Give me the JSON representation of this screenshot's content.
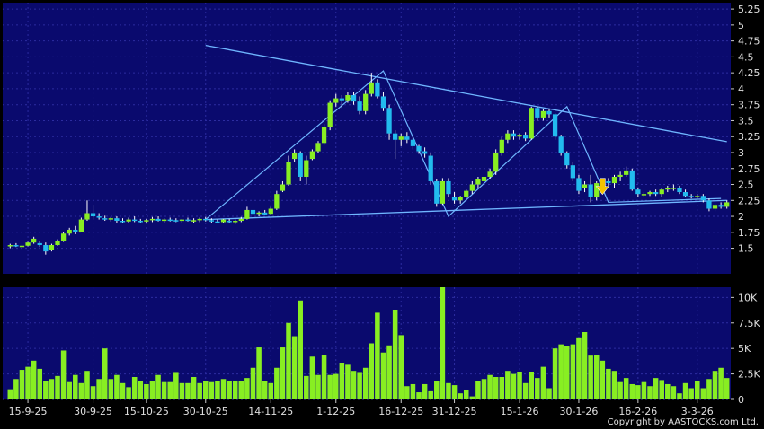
{
  "chart_data": [
    {
      "type": "candlestick",
      "panel": "price",
      "ylim": [
        1.1,
        5.35
      ],
      "y_ticks": [
        "5.25",
        "5",
        "4.75",
        "4.5",
        "4.25",
        "4",
        "3.75",
        "3.5",
        "3.25",
        "3",
        "2.75",
        "2.5",
        "2.25",
        "2",
        "1.75",
        "1.5"
      ],
      "grid": true,
      "colors": {
        "background": "#0a0a6e",
        "grid": "#2c2ca0",
        "up": "#88ee22",
        "down": "#22bbee",
        "trendline": "#6fb6ff",
        "marker": "#f5c400"
      },
      "candles": [
        [
          1.53,
          1.57,
          1.5,
          1.55
        ],
        [
          1.55,
          1.58,
          1.52,
          1.53
        ],
        [
          1.53,
          1.56,
          1.5,
          1.54
        ],
        [
          1.54,
          1.6,
          1.53,
          1.59
        ],
        [
          1.59,
          1.68,
          1.57,
          1.65
        ],
        [
          1.58,
          1.62,
          1.52,
          1.55
        ],
        [
          1.55,
          1.59,
          1.4,
          1.45
        ],
        [
          1.47,
          1.57,
          1.45,
          1.55
        ],
        [
          1.55,
          1.64,
          1.54,
          1.62
        ],
        [
          1.62,
          1.75,
          1.6,
          1.73
        ],
        [
          1.73,
          1.82,
          1.7,
          1.79
        ],
        [
          1.79,
          1.85,
          1.72,
          1.76
        ],
        [
          1.76,
          1.98,
          1.75,
          1.95
        ],
        [
          1.95,
          2.25,
          1.93,
          2.05
        ],
        [
          2.05,
          2.18,
          1.95,
          2.0
        ],
        [
          2.0,
          2.05,
          1.95,
          1.98
        ],
        [
          1.97,
          2.01,
          1.93,
          1.95
        ],
        [
          1.95,
          1.99,
          1.92,
          1.97
        ],
        [
          1.97,
          2.0,
          1.9,
          1.93
        ],
        [
          1.93,
          1.97,
          1.89,
          1.92
        ],
        [
          1.92,
          1.98,
          1.9,
          1.95
        ],
        [
          1.95,
          2.0,
          1.91,
          1.93
        ],
        [
          1.93,
          1.96,
          1.89,
          1.92
        ],
        [
          1.92,
          1.96,
          1.9,
          1.94
        ],
        [
          1.94,
          1.99,
          1.91,
          1.96
        ],
        [
          1.96,
          2.0,
          1.92,
          1.93
        ],
        [
          1.93,
          1.97,
          1.9,
          1.95
        ],
        [
          1.95,
          1.98,
          1.92,
          1.94
        ],
        [
          1.94,
          1.97,
          1.91,
          1.93
        ],
        [
          1.93,
          1.96,
          1.9,
          1.95
        ],
        [
          1.95,
          1.98,
          1.92,
          1.93
        ],
        [
          1.93,
          1.97,
          1.9,
          1.94
        ],
        [
          1.94,
          1.98,
          1.91,
          1.96
        ],
        [
          1.96,
          1.99,
          1.92,
          1.94
        ],
        [
          1.94,
          1.97,
          1.9,
          1.92
        ],
        [
          1.92,
          1.95,
          1.89,
          1.91
        ],
        [
          1.91,
          1.96,
          1.9,
          1.95
        ],
        [
          1.93,
          1.96,
          1.9,
          1.92
        ],
        [
          1.92,
          1.95,
          1.88,
          1.93
        ],
        [
          1.93,
          1.99,
          1.91,
          1.96
        ],
        [
          1.96,
          2.15,
          1.95,
          2.1
        ],
        [
          2.1,
          2.12,
          2.02,
          2.04
        ],
        [
          2.04,
          2.08,
          2.0,
          2.06
        ],
        [
          2.06,
          2.1,
          2.02,
          2.03
        ],
        [
          2.04,
          2.15,
          2.03,
          2.12
        ],
        [
          2.12,
          2.4,
          2.1,
          2.35
        ],
        [
          2.4,
          2.55,
          2.38,
          2.5
        ],
        [
          2.5,
          2.95,
          2.48,
          2.85
        ],
        [
          2.9,
          3.05,
          2.85,
          3.0
        ],
        [
          3.0,
          3.02,
          2.55,
          2.62
        ],
        [
          2.62,
          2.95,
          2.5,
          2.88
        ],
        [
          2.9,
          3.05,
          2.88,
          3.02
        ],
        [
          3.02,
          3.18,
          3.0,
          3.15
        ],
        [
          3.15,
          3.45,
          3.12,
          3.4
        ],
        [
          3.4,
          3.82,
          3.35,
          3.78
        ],
        [
          3.78,
          3.92,
          3.72,
          3.85
        ],
        [
          3.85,
          3.9,
          3.7,
          3.82
        ],
        [
          3.82,
          3.95,
          3.78,
          3.9
        ],
        [
          3.9,
          3.95,
          3.75,
          3.8
        ],
        [
          3.8,
          3.88,
          3.6,
          3.65
        ],
        [
          3.65,
          3.98,
          3.6,
          3.92
        ],
        [
          3.92,
          4.25,
          3.88,
          4.1
        ],
        [
          4.1,
          4.15,
          3.85,
          3.88
        ],
        [
          3.88,
          3.95,
          3.65,
          3.7
        ],
        [
          3.7,
          3.75,
          3.2,
          3.3
        ],
        [
          3.3,
          3.35,
          2.9,
          3.2
        ],
        [
          3.2,
          3.3,
          3.1,
          3.25
        ],
        [
          3.25,
          3.32,
          3.15,
          3.2
        ],
        [
          3.2,
          3.25,
          3.05,
          3.1
        ],
        [
          3.1,
          3.12,
          2.98,
          3.02
        ],
        [
          3.02,
          3.08,
          2.92,
          2.98
        ],
        [
          2.95,
          3.0,
          2.5,
          2.55
        ],
        [
          2.55,
          2.58,
          2.15,
          2.2
        ],
        [
          2.2,
          2.6,
          2.18,
          2.55
        ],
        [
          2.55,
          2.6,
          2.3,
          2.35
        ],
        [
          2.3,
          2.38,
          2.2,
          2.25
        ],
        [
          2.25,
          2.32,
          2.2,
          2.3
        ],
        [
          2.3,
          2.42,
          2.28,
          2.4
        ],
        [
          2.4,
          2.55,
          2.35,
          2.5
        ],
        [
          2.5,
          2.62,
          2.45,
          2.58
        ],
        [
          2.55,
          2.65,
          2.5,
          2.62
        ],
        [
          2.62,
          2.75,
          2.58,
          2.7
        ],
        [
          2.7,
          3.05,
          2.65,
          3.0
        ],
        [
          3.0,
          3.25,
          2.95,
          3.2
        ],
        [
          3.2,
          3.35,
          3.15,
          3.3
        ],
        [
          3.3,
          3.35,
          3.2,
          3.25
        ],
        [
          3.25,
          3.3,
          3.2,
          3.28
        ],
        [
          3.28,
          3.32,
          3.18,
          3.22
        ],
        [
          3.22,
          3.72,
          3.2,
          3.7
        ],
        [
          3.7,
          3.72,
          3.5,
          3.55
        ],
        [
          3.55,
          3.68,
          3.5,
          3.65
        ],
        [
          3.65,
          3.68,
          3.55,
          3.6
        ],
        [
          3.6,
          3.62,
          3.2,
          3.25
        ],
        [
          3.25,
          3.28,
          2.95,
          3.0
        ],
        [
          3.0,
          3.02,
          2.75,
          2.8
        ],
        [
          2.8,
          2.85,
          2.55,
          2.6
        ],
        [
          2.6,
          2.65,
          2.35,
          2.4
        ],
        [
          2.45,
          2.55,
          2.38,
          2.5
        ],
        [
          2.5,
          2.65,
          2.22,
          2.3
        ],
        [
          2.3,
          2.55,
          2.25,
          2.52
        ],
        [
          2.52,
          2.58,
          2.45,
          2.55
        ],
        [
          2.55,
          2.6,
          2.48,
          2.52
        ],
        [
          2.52,
          2.65,
          2.45,
          2.62
        ],
        [
          2.62,
          2.7,
          2.55,
          2.65
        ],
        [
          2.65,
          2.78,
          2.62,
          2.72
        ],
        [
          2.72,
          2.75,
          2.4,
          2.42
        ],
        [
          2.42,
          2.45,
          2.3,
          2.35
        ],
        [
          2.35,
          2.38,
          2.3,
          2.35
        ],
        [
          2.35,
          2.4,
          2.32,
          2.38
        ],
        [
          2.38,
          2.42,
          2.32,
          2.35
        ],
        [
          2.35,
          2.45,
          2.3,
          2.42
        ],
        [
          2.42,
          2.48,
          2.38,
          2.45
        ],
        [
          2.45,
          2.5,
          2.4,
          2.45
        ],
        [
          2.45,
          2.48,
          2.35,
          2.38
        ],
        [
          2.38,
          2.42,
          2.3,
          2.32
        ],
        [
          2.32,
          2.35,
          2.28,
          2.3
        ],
        [
          2.3,
          2.35,
          2.28,
          2.32
        ],
        [
          2.32,
          2.35,
          2.22,
          2.25
        ],
        [
          2.25,
          2.28,
          2.08,
          2.12
        ],
        [
          2.12,
          2.2,
          2.08,
          2.18
        ],
        [
          2.18,
          2.22,
          2.12,
          2.15
        ],
        [
          2.15,
          2.25,
          2.12,
          2.22
        ]
      ],
      "trendlines": [
        {
          "from": [
            33,
            4.68
          ],
          "to": [
            121,
            3.17
          ]
        },
        {
          "from": [
            33,
            1.95
          ],
          "to": [
            121,
            2.25
          ]
        }
      ],
      "zigzag": [
        [
          33,
          1.95
        ],
        [
          63,
          4.28
        ],
        [
          74,
          2.0
        ],
        [
          94,
          3.72
        ],
        [
          101,
          2.22
        ],
        [
          120,
          2.28
        ]
      ],
      "marker": {
        "index": 100,
        "value": 2.4,
        "shape": "down-arrow"
      }
    },
    {
      "type": "bar",
      "panel": "volume",
      "ylim": [
        0,
        11000
      ],
      "y_ticks": [
        "10K",
        "7.5K",
        "5K",
        "2.5K",
        "0"
      ],
      "grid": true,
      "colors": {
        "bar": "#88ee22"
      },
      "values": [
        1000,
        2000,
        2900,
        3200,
        3800,
        3000,
        1800,
        2000,
        2300,
        4800,
        1700,
        2400,
        1600,
        2800,
        1300,
        2000,
        5000,
        2000,
        2400,
        1600,
        1200,
        2200,
        1800,
        1500,
        1800,
        2400,
        1700,
        1700,
        2600,
        1600,
        1600,
        2200,
        1600,
        1800,
        1700,
        1800,
        2000,
        1800,
        1800,
        1800,
        2100,
        3100,
        5100,
        1800,
        1600,
        3100,
        5100,
        7500,
        6200,
        9700,
        2300,
        4200,
        2400,
        4400,
        2400,
        2500,
        3600,
        3400,
        2800,
        2600,
        3100,
        5500,
        8500,
        4600,
        5300,
        8800,
        6300,
        1300,
        1500,
        700,
        1500,
        800,
        1800,
        12100,
        1600,
        1400,
        600,
        900,
        300,
        1800,
        2000,
        2400,
        2200,
        2200,
        2800,
        2500,
        2700,
        1600,
        2700,
        2100,
        3200,
        1100,
        5000,
        5400,
        5200,
        5400,
        6000,
        6600,
        4300,
        4400,
        3800,
        3000,
        2800,
        1700,
        2100,
        1500,
        1400,
        1700,
        1300,
        2100,
        1900,
        1500,
        1300,
        600,
        1600,
        1100,
        1800,
        1100,
        2000,
        2800,
        3100,
        2100
      ]
    },
    {
      "type": "x-axis",
      "ticks": [
        {
          "index": 3,
          "label": "15-9-25"
        },
        {
          "index": 14,
          "label": "30-9-25"
        },
        {
          "index": 23,
          "label": "15-10-25"
        },
        {
          "index": 33,
          "label": "30-10-25"
        },
        {
          "index": 44,
          "label": "14-11-25"
        },
        {
          "index": 55,
          "label": "1-12-25"
        },
        {
          "index": 66,
          "label": "16-12-25"
        },
        {
          "index": 75,
          "label": "31-12-25"
        },
        {
          "index": 86,
          "label": "15-1-26"
        },
        {
          "index": 96,
          "label": "30-1-26"
        },
        {
          "index": 106,
          "label": "16-2-26"
        },
        {
          "index": 116,
          "label": "3-3-26"
        }
      ]
    }
  ],
  "copyright": "Copyright by AASTOCKS.com Ltd."
}
